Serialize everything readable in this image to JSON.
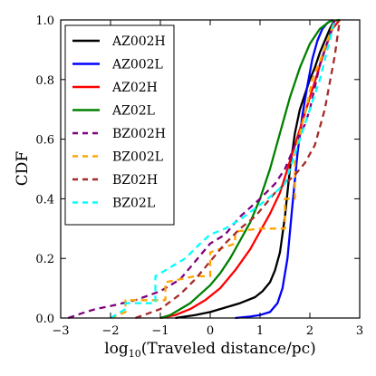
{
  "chart_data": {
    "type": "line",
    "title": "",
    "xlabel_main": "log",
    "xlabel_sub": "10",
    "xlabel_rest": "(Traveled distance/pc)",
    "ylabel": "CDF",
    "xlim": [
      -3,
      3
    ],
    "ylim": [
      0,
      1
    ],
    "xticks": [
      -3,
      -2,
      -1,
      0,
      1,
      2,
      3
    ],
    "xtick_labels": [
      "−3",
      "−2",
      "−1",
      "0",
      "1",
      "2",
      "3"
    ],
    "yticks": [
      0,
      0.2,
      0.4,
      0.6,
      0.8,
      1.0
    ],
    "ytick_labels": [
      "0.0",
      "0.2",
      "0.4",
      "0.6",
      "0.8",
      "1.0"
    ],
    "grid": false,
    "legend_position": "top-left",
    "series": [
      {
        "name": "AZ002H",
        "color": "#000000",
        "dash": "solid",
        "x": [
          -0.7,
          -0.3,
          0.0,
          0.3,
          0.6,
          0.9,
          1.05,
          1.2,
          1.3,
          1.4,
          1.5,
          1.6,
          1.7,
          1.8,
          1.9,
          2.0,
          2.1,
          2.2,
          2.3,
          2.4,
          2.5
        ],
        "y": [
          0.0,
          0.01,
          0.02,
          0.035,
          0.05,
          0.07,
          0.09,
          0.12,
          0.16,
          0.22,
          0.34,
          0.5,
          0.62,
          0.7,
          0.75,
          0.8,
          0.84,
          0.89,
          0.93,
          0.97,
          1.0
        ]
      },
      {
        "name": "AZ002L",
        "color": "#0000ff",
        "dash": "solid",
        "x": [
          0.5,
          0.8,
          1.0,
          1.2,
          1.35,
          1.45,
          1.55,
          1.65,
          1.75,
          1.85,
          1.95,
          2.05,
          2.15,
          2.25,
          2.35,
          2.45
        ],
        "y": [
          0.0,
          0.005,
          0.01,
          0.02,
          0.05,
          0.1,
          0.2,
          0.38,
          0.55,
          0.68,
          0.78,
          0.87,
          0.93,
          0.97,
          0.99,
          1.0
        ]
      },
      {
        "name": "AZ02H",
        "color": "#ff0000",
        "dash": "solid",
        "x": [
          -1.0,
          -0.7,
          -0.4,
          -0.1,
          0.2,
          0.5,
          0.8,
          1.0,
          1.2,
          1.4,
          1.55,
          1.7,
          1.85,
          2.0,
          2.15,
          2.3,
          2.45,
          2.6
        ],
        "y": [
          0.0,
          0.01,
          0.03,
          0.06,
          0.1,
          0.16,
          0.23,
          0.29,
          0.35,
          0.42,
          0.5,
          0.58,
          0.66,
          0.74,
          0.82,
          0.9,
          0.97,
          1.0
        ]
      },
      {
        "name": "AZ02L",
        "color": "#008000",
        "dash": "solid",
        "x": [
          -1.0,
          -0.8,
          -0.6,
          -0.4,
          -0.2,
          0.0,
          0.2,
          0.4,
          0.6,
          0.8,
          1.0,
          1.2,
          1.4,
          1.6,
          1.8,
          2.0,
          2.2,
          2.4,
          2.6
        ],
        "y": [
          0.0,
          0.01,
          0.03,
          0.05,
          0.08,
          0.11,
          0.15,
          0.2,
          0.26,
          0.32,
          0.4,
          0.5,
          0.62,
          0.74,
          0.84,
          0.92,
          0.97,
          0.995,
          1.0
        ]
      },
      {
        "name": "BZ002H",
        "color": "#800080",
        "dash": "dashed",
        "x": [
          -2.85,
          -2.5,
          -2.3,
          -2.0,
          -1.5,
          -1.0,
          -0.6,
          -0.3,
          0.0,
          0.3,
          0.6,
          1.0,
          1.3,
          1.5,
          1.7,
          1.9,
          2.0,
          2.2,
          2.5
        ],
        "y": [
          0.0,
          0.02,
          0.03,
          0.04,
          0.06,
          0.09,
          0.13,
          0.19,
          0.25,
          0.28,
          0.34,
          0.4,
          0.45,
          0.5,
          0.58,
          0.65,
          0.7,
          0.85,
          1.0
        ]
      },
      {
        "name": "BZ002L",
        "color": "#ffa500",
        "dash": "dashed",
        "x": [
          -2.0,
          -1.7,
          -1.7,
          -0.9,
          -0.9,
          -0.3,
          0.0,
          0.0,
          0.5,
          0.5,
          1.0,
          1.4,
          1.5,
          1.5,
          1.7,
          1.7,
          1.8,
          1.95,
          2.05,
          2.2,
          2.35,
          2.5
        ],
        "y": [
          0.0,
          0.02,
          0.06,
          0.06,
          0.12,
          0.14,
          0.14,
          0.22,
          0.25,
          0.29,
          0.3,
          0.3,
          0.3,
          0.4,
          0.4,
          0.55,
          0.62,
          0.72,
          0.8,
          0.86,
          0.93,
          1.0
        ]
      },
      {
        "name": "BZ02H",
        "color": "#a52a2a",
        "dash": "dashed",
        "x": [
          -1.5,
          -1.0,
          -0.6,
          -0.3,
          0.0,
          0.3,
          0.6,
          0.9,
          1.1,
          1.3,
          1.5,
          1.7,
          1.9,
          2.1,
          2.3,
          2.5,
          2.6
        ],
        "y": [
          0.0,
          0.03,
          0.08,
          0.13,
          0.19,
          0.25,
          0.3,
          0.34,
          0.38,
          0.42,
          0.45,
          0.48,
          0.52,
          0.58,
          0.7,
          0.88,
          1.0
        ]
      },
      {
        "name": "BZ02L",
        "color": "#00ffff",
        "dash": "dashed",
        "x": [
          -2.0,
          -1.7,
          -1.7,
          -1.1,
          -1.1,
          -0.5,
          -0.2,
          0.0,
          0.3,
          0.6,
          1.0,
          1.3,
          1.5,
          1.7,
          1.9,
          2.0,
          2.2,
          2.35,
          2.5
        ],
        "y": [
          0.0,
          0.03,
          0.05,
          0.05,
          0.14,
          0.2,
          0.25,
          0.28,
          0.3,
          0.33,
          0.38,
          0.42,
          0.45,
          0.55,
          0.65,
          0.7,
          0.8,
          0.9,
          1.0
        ]
      }
    ]
  }
}
